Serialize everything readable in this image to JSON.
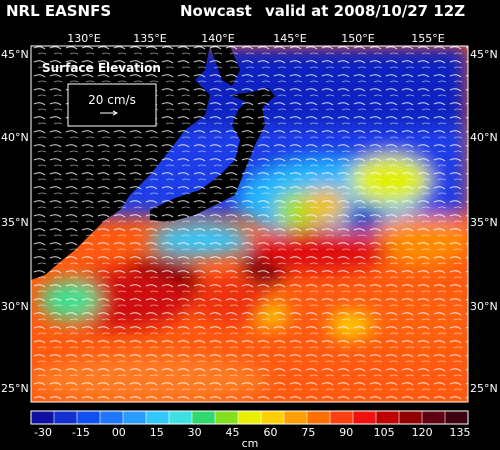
{
  "header": {
    "model": "NRL EASNFS",
    "product": "Nowcast",
    "valid": "valid at 2008/10/27 12Z"
  },
  "map": {
    "lon_ticks": [
      "130°E",
      "135°E",
      "140°E",
      "145°E",
      "150°E",
      "155°E"
    ],
    "lat_ticks": [
      "45°N",
      "40°N",
      "35°N",
      "30°N",
      "25°N"
    ],
    "variable": "Surface Elevation",
    "reference_vector": "20 cm/s"
  },
  "colorbar": {
    "labels": [
      "-30",
      "-15",
      "00",
      "15",
      "30",
      "45",
      "60",
      "75",
      "90",
      "105",
      "120",
      "135"
    ],
    "unit": "cm",
    "colors": [
      "#1010a0",
      "#1030d0",
      "#1050f0",
      "#1e78ff",
      "#2a9cff",
      "#30c8ff",
      "#40e0e0",
      "#30d870",
      "#80e020",
      "#e8f000",
      "#ffd000",
      "#ffa000",
      "#ff7000",
      "#ff4010",
      "#f01010",
      "#c00000",
      "#900000",
      "#600010",
      "#3c0010"
    ]
  }
}
